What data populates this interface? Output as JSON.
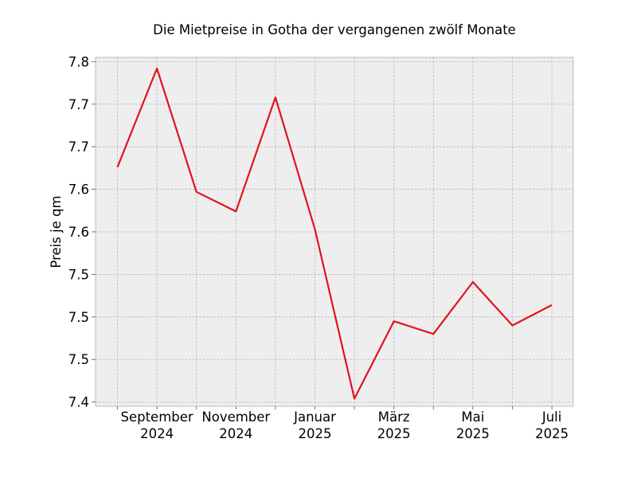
{
  "chart_data": {
    "type": "line",
    "title": "Die Mietpreise in Gotha der vergangenen zwölf Monate",
    "xlabel": "",
    "ylabel": "Preis je qm",
    "x": [
      "2024-08",
      "2024-09",
      "2024-10",
      "2024-11",
      "2024-12",
      "2025-01",
      "2025-02",
      "2025-03",
      "2025-04",
      "2025-05",
      "2025-06",
      "2025-07"
    ],
    "series": [
      {
        "values": [
          7.676,
          7.792,
          7.647,
          7.624,
          7.758,
          7.603,
          7.404,
          7.495,
          7.48,
          7.541,
          7.49,
          7.514
        ]
      }
    ],
    "ylim": [
      7.395,
      7.805
    ],
    "yticks": [
      7.4,
      7.45,
      7.5,
      7.55,
      7.6,
      7.65,
      7.7,
      7.75,
      7.8
    ],
    "ytick_labels": [
      "7.4",
      "7.5",
      "7.5",
      "7.5",
      "7.6",
      "7.6",
      "7.7",
      "7.7",
      "7.8"
    ],
    "xtick_labels": [
      {
        "month": "September",
        "year": "2024"
      },
      {
        "month": "November",
        "year": "2024"
      },
      {
        "month": "Januar",
        "year": "2025"
      },
      {
        "month": "März",
        "year": "2025"
      },
      {
        "month": "Mai",
        "year": "2025"
      },
      {
        "month": "Juli",
        "year": "2025"
      }
    ],
    "grid": true,
    "line_color": "#e0141e",
    "background_color": "#eeeeee"
  }
}
